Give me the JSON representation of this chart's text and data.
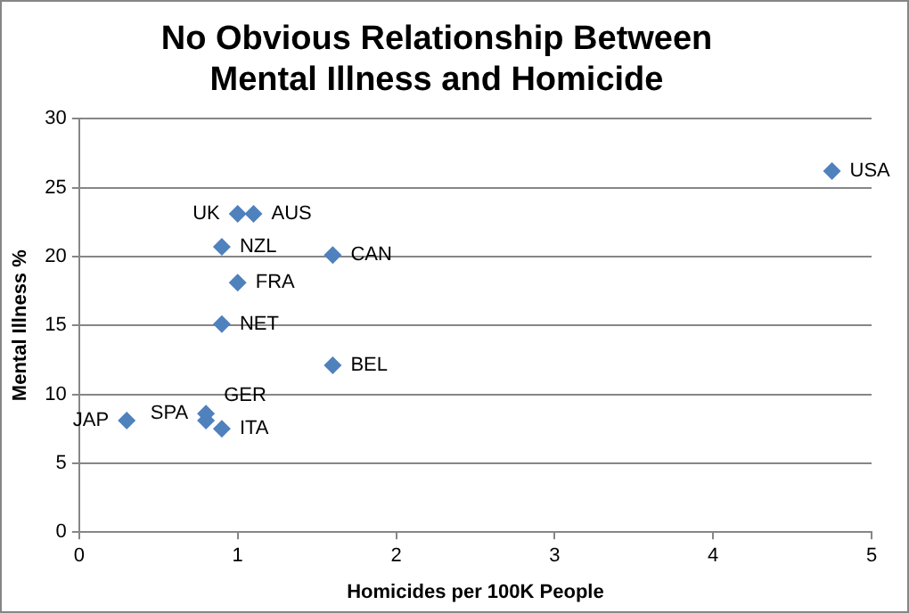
{
  "chart_data": {
    "type": "scatter",
    "title": "No Obvious Relationship Between Mental Illness and Homicide",
    "xlabel": "Homicides per 100K People",
    "ylabel": "Mental Illness %",
    "x": [
      4.75,
      1.0,
      1.1,
      0.9,
      1.6,
      1.0,
      0.9,
      1.6,
      0.8,
      0.8,
      0.3,
      0.9
    ],
    "series": [
      {
        "color": "#4f81bd",
        "values": [
          26.2,
          23.1,
          23.1,
          20.7,
          20.1,
          18.1,
          15.1,
          12.1,
          8.6,
          8.1,
          8.1,
          7.5
        ]
      }
    ],
    "annotations": [
      {
        "text": "USA",
        "x": 4.75,
        "y": 26.2
      },
      {
        "text": "UK",
        "x": 1.0,
        "y": 23.1
      },
      {
        "text": "AUS",
        "x": 1.1,
        "y": 23.1
      },
      {
        "text": "NZL",
        "x": 0.9,
        "y": 20.7
      },
      {
        "text": "CAN",
        "x": 1.6,
        "y": 20.1
      },
      {
        "text": "FRA",
        "x": 1.0,
        "y": 18.1
      },
      {
        "text": "NET",
        "x": 0.9,
        "y": 15.1
      },
      {
        "text": "BEL",
        "x": 1.6,
        "y": 12.1
      },
      {
        "text": "SPA",
        "x": 0.8,
        "y": 8.6
      },
      {
        "text": "GER",
        "x": 0.8,
        "y": 8.1
      },
      {
        "text": "JAP",
        "x": 0.3,
        "y": 8.1
      },
      {
        "text": "ITA",
        "x": 0.9,
        "y": 7.5
      }
    ],
    "xlim": [
      0,
      5
    ],
    "xticks": [
      0,
      1,
      2,
      3,
      4,
      5
    ],
    "ylim": [
      0,
      30
    ],
    "yticks": [
      0,
      5,
      10,
      15,
      20,
      25,
      30
    ],
    "grid": "y",
    "legend": false,
    "marker": "diamond"
  }
}
